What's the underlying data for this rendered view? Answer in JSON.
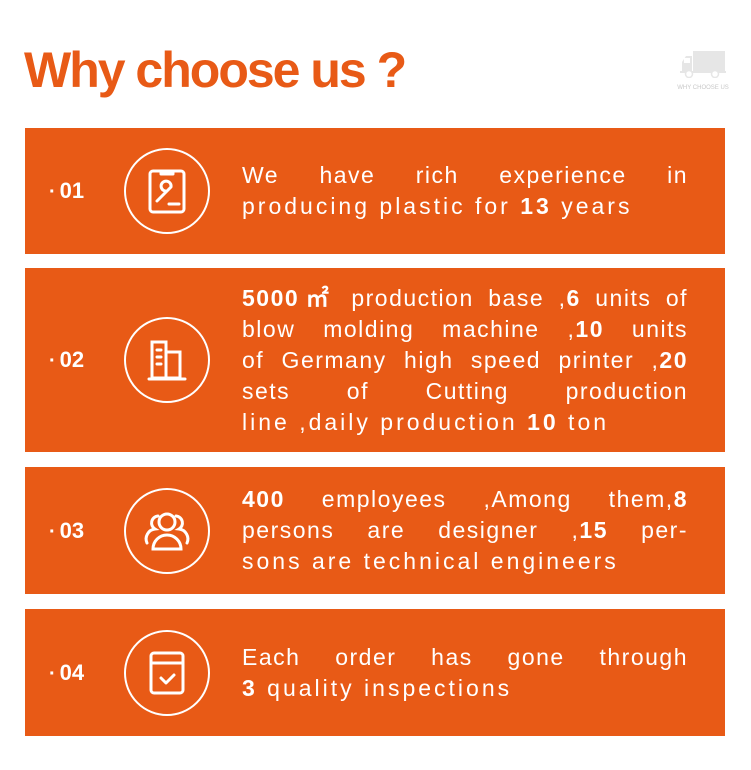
{
  "title": "Why choose us ?",
  "badge": {
    "text": "WHY CHOOSE US",
    "icon": "truck-icon"
  },
  "accent": "#E85A16",
  "cards": [
    {
      "num": "01",
      "icon": "clipboard-wrench-icon",
      "lines": [
        [
          {
            "t": "We have rich experience in",
            "b": false
          }
        ],
        [
          {
            "t": "producing plastic for ",
            "b": false
          },
          {
            "t": "13",
            "b": true
          },
          {
            "t": " years",
            "b": false
          }
        ]
      ]
    },
    {
      "num": "02",
      "icon": "buildings-icon",
      "lines": [
        [
          {
            "t": "5000㎡",
            "b": true
          },
          {
            "t": " production base ,",
            "b": false
          },
          {
            "t": "6",
            "b": true
          },
          {
            "t": " units of",
            "b": false
          }
        ],
        [
          {
            "t": "blow molding machine ,",
            "b": false
          },
          {
            "t": "10",
            "b": true
          },
          {
            "t": " units",
            "b": false
          }
        ],
        [
          {
            "t": "of Germany high speed printer ,",
            "b": false
          },
          {
            "t": "20",
            "b": true
          }
        ],
        [
          {
            "t": "sets of Cutting production",
            "b": false
          }
        ],
        [
          {
            "t": "line ,daily production ",
            "b": false
          },
          {
            "t": "10",
            "b": true
          },
          {
            "t": " ton",
            "b": false
          }
        ]
      ]
    },
    {
      "num": "03",
      "icon": "users-icon",
      "lines": [
        [
          {
            "t": "400",
            "b": true
          },
          {
            "t": " employees ,Among them,",
            "b": false
          },
          {
            "t": "8",
            "b": true
          }
        ],
        [
          {
            "t": "persons are designer ,",
            "b": false
          },
          {
            "t": "15",
            "b": true
          },
          {
            "t": " per-",
            "b": false
          }
        ],
        [
          {
            "t": "sons are technical engineers",
            "b": false
          }
        ]
      ]
    },
    {
      "num": "04",
      "icon": "checklist-icon",
      "lines": [
        [
          {
            "t": "Each order has gone through",
            "b": false
          }
        ],
        [
          {
            "t": "3",
            "b": true
          },
          {
            "t": " quality inspections",
            "b": false
          }
        ]
      ]
    }
  ]
}
